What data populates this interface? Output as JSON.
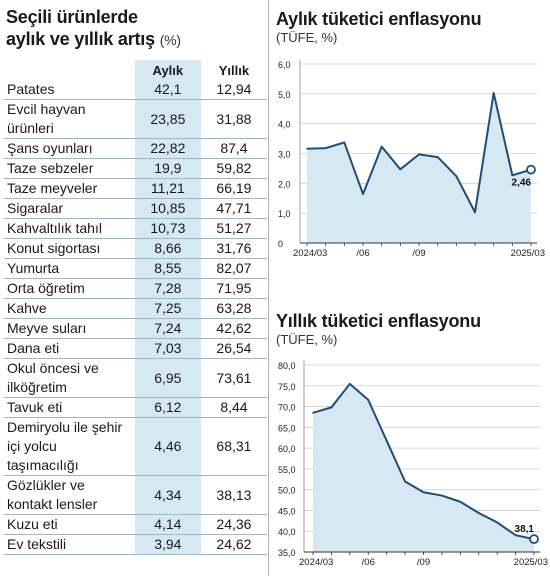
{
  "table": {
    "title_line1": "Seçili ürünlerde",
    "title_line2": "aylık ve yıllık artış",
    "title_unit": "(%)",
    "col_monthly": "Aylık",
    "col_yearly": "Yıllık",
    "rows": [
      {
        "name": "Patates",
        "m": "42,1",
        "y": "12,94"
      },
      {
        "name": "Evcil hayvan ürünleri",
        "m": "23,85",
        "y": "31,88"
      },
      {
        "name": "Şans oyunları",
        "m": "22,82",
        "y": "87,4"
      },
      {
        "name": "Taze sebzeler",
        "m": "19,9",
        "y": "59,82"
      },
      {
        "name": "Taze meyveler",
        "m": "11,21",
        "y": "66,19"
      },
      {
        "name": "Sigaralar",
        "m": "10,85",
        "y": "47,71"
      },
      {
        "name": "Kahvaltılık tahıl",
        "m": "10,73",
        "y": "51,27"
      },
      {
        "name": "Konut sigortası",
        "m": "8,66",
        "y": "31,76"
      },
      {
        "name": "Yumurta",
        "m": "8,55",
        "y": "82,07"
      },
      {
        "name": "Orta öğretim",
        "m": "7,28",
        "y": "71,95"
      },
      {
        "name": "Kahve",
        "m": "7,25",
        "y": "63,28"
      },
      {
        "name": "Meyve suları",
        "m": "7,24",
        "y": "42,62"
      },
      {
        "name": "Dana eti",
        "m": "7,03",
        "y": "26,54"
      },
      {
        "name": "Okul öncesi ve ilköğretim",
        "m": "6,95",
        "y": "73,61"
      },
      {
        "name": "Tavuk eti",
        "m": "6,12",
        "y": "8,44"
      },
      {
        "name": "Demiryolu ile şehir içi yolcu taşımacılığı",
        "m": "4,46",
        "y": "68,31"
      },
      {
        "name": "Gözlükler ve kontakt lensler",
        "m": "4,34",
        "y": "38,13"
      },
      {
        "name": "Kuzu eti",
        "m": "4,14",
        "y": "24,36"
      },
      {
        "name": "Ev tekstili",
        "m": "3,94",
        "y": "24,62"
      }
    ]
  },
  "chart_data": [
    {
      "type": "area",
      "title": "Aylık tüketici enflasyonu",
      "subtitle": "(TÜFE, %)",
      "x": [
        "2024/03",
        "2024/04",
        "2024/05",
        "2024/06",
        "2024/07",
        "2024/08",
        "2024/09",
        "2024/10",
        "2024/11",
        "2024/12",
        "2025/01",
        "2025/02",
        "2025/03"
      ],
      "x_tick_labels": [
        "2024/03",
        "/06",
        "/09",
        "2025/03"
      ],
      "x_tick_indices": [
        0,
        3,
        6,
        12
      ],
      "values": [
        3.16,
        3.18,
        3.37,
        1.64,
        3.23,
        2.47,
        2.97,
        2.88,
        2.24,
        1.03,
        5.03,
        2.27,
        2.46
      ],
      "ylim": [
        0,
        6
      ],
      "y_ticks": [
        "0",
        "1,0",
        "2,0",
        "3,0",
        "4,0",
        "5,0",
        "6,0"
      ],
      "last_label": "2,46",
      "fill": "#d6e8f2",
      "line": "#1f4e79"
    },
    {
      "type": "area",
      "title": "Yıllık tüketici enflasyonu",
      "subtitle": "(TÜFE, %)",
      "x": [
        "2024/03",
        "2024/04",
        "2024/05",
        "2024/06",
        "2024/07",
        "2024/08",
        "2024/09",
        "2024/10",
        "2024/11",
        "2024/12",
        "2025/01",
        "2025/02",
        "2025/03"
      ],
      "x_tick_labels": [
        "2024/03",
        "/06",
        "/09",
        "2025/03"
      ],
      "x_tick_indices": [
        0,
        3,
        6,
        12
      ],
      "values": [
        68.5,
        69.8,
        75.45,
        71.6,
        61.78,
        51.97,
        49.38,
        48.58,
        47.09,
        44.38,
        42.12,
        39.05,
        38.1
      ],
      "ylim": [
        35,
        80
      ],
      "y_ticks": [
        "35,0",
        "40,0",
        "45,0",
        "50,0",
        "55,0",
        "60,0",
        "65,0",
        "70,0",
        "75,0",
        "80,0"
      ],
      "last_label": "38,1",
      "fill": "#d6e8f2",
      "line": "#1f4e79"
    }
  ]
}
